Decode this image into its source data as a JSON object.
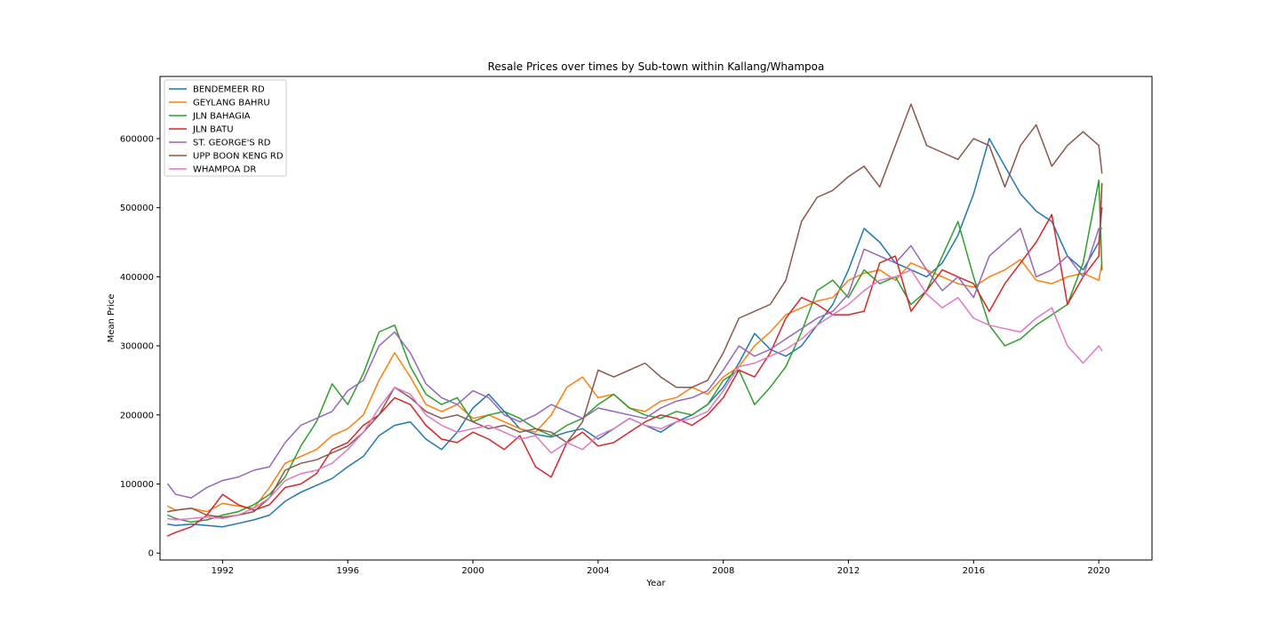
{
  "chart_data": {
    "type": "line",
    "title": "Resale Prices over times by Sub-town within Kallang/Whampoa",
    "xlabel": "Year",
    "ylabel": "Mean Price",
    "xlim": [
      1990.0,
      2021.7
    ],
    "ylim": [
      -10000,
      690000
    ],
    "xticks": [
      1992,
      1996,
      2000,
      2004,
      2008,
      2012,
      2016,
      2020
    ],
    "yticks": [
      0,
      100000,
      200000,
      300000,
      400000,
      500000,
      600000
    ],
    "grid": false,
    "legend_position": "top-left",
    "x": [
      1990.25,
      1990.5,
      1991.0,
      1991.5,
      1992.0,
      1992.5,
      1993.0,
      1993.5,
      1994.0,
      1994.5,
      1995.0,
      1995.5,
      1996.0,
      1996.5,
      1997.0,
      1997.5,
      1998.0,
      1998.5,
      1999.0,
      1999.5,
      2000.0,
      2000.5,
      2001.0,
      2001.5,
      2002.0,
      2002.5,
      2003.0,
      2003.5,
      2004.0,
      2004.5,
      2005.0,
      2005.5,
      2006.0,
      2006.5,
      2007.0,
      2007.5,
      2008.0,
      2008.5,
      2009.0,
      2009.5,
      2010.0,
      2010.5,
      2011.0,
      2011.5,
      2012.0,
      2012.5,
      2013.0,
      2013.5,
      2014.0,
      2014.5,
      2015.0,
      2015.5,
      2016.0,
      2016.5,
      2017.0,
      2017.5,
      2018.0,
      2018.5,
      2019.0,
      2019.5,
      2020.0,
      2020.1
    ],
    "series": [
      {
        "name": "BENDEMEER RD",
        "color": "#1f77b4",
        "values": [
          42000,
          40000,
          42000,
          40000,
          38000,
          43000,
          48000,
          55000,
          75000,
          88000,
          98000,
          108000,
          125000,
          140000,
          170000,
          185000,
          190000,
          165000,
          150000,
          175000,
          210000,
          230000,
          205000,
          180000,
          172000,
          168000,
          175000,
          180000,
          165000,
          180000,
          195000,
          185000,
          175000,
          190000,
          200000,
          215000,
          240000,
          275000,
          318000,
          295000,
          285000,
          300000,
          330000,
          360000,
          410000,
          470000,
          450000,
          420000,
          410000,
          400000,
          420000,
          460000,
          520000,
          600000,
          560000,
          520000,
          495000,
          480000,
          430000,
          410000,
          450000,
          500000
        ]
      },
      {
        "name": "GEYLANG BAHRU",
        "color": "#ff7f0e",
        "values": [
          68000,
          62000,
          65000,
          60000,
          72000,
          68000,
          65000,
          95000,
          130000,
          140000,
          150000,
          170000,
          180000,
          200000,
          250000,
          290000,
          255000,
          215000,
          205000,
          215000,
          195000,
          200000,
          190000,
          180000,
          175000,
          200000,
          240000,
          255000,
          225000,
          230000,
          210000,
          205000,
          220000,
          225000,
          240000,
          230000,
          255000,
          270000,
          300000,
          320000,
          345000,
          355000,
          365000,
          370000,
          395000,
          405000,
          410000,
          395000,
          420000,
          410000,
          400000,
          390000,
          385000,
          400000,
          410000,
          425000,
          395000,
          390000,
          400000,
          405000,
          395000,
          420000
        ]
      },
      {
        "name": "JLN BAHAGIA",
        "color": "#2ca02c",
        "values": [
          55000,
          50000,
          45000,
          48000,
          55000,
          60000,
          70000,
          85000,
          110000,
          155000,
          190000,
          245000,
          215000,
          260000,
          320000,
          330000,
          270000,
          230000,
          215000,
          225000,
          190000,
          200000,
          205000,
          195000,
          180000,
          170000,
          185000,
          195000,
          215000,
          230000,
          210000,
          200000,
          195000,
          205000,
          200000,
          215000,
          250000,
          265000,
          215000,
          240000,
          270000,
          320000,
          380000,
          395000,
          370000,
          410000,
          390000,
          400000,
          360000,
          380000,
          430000,
          480000,
          400000,
          330000,
          300000,
          310000,
          330000,
          345000,
          360000,
          420000,
          540000,
          410000
        ]
      },
      {
        "name": "JLN BATU",
        "color": "#d62728",
        "values": [
          25000,
          30000,
          38000,
          55000,
          85000,
          70000,
          62000,
          70000,
          95000,
          100000,
          115000,
          150000,
          160000,
          185000,
          200000,
          225000,
          215000,
          185000,
          165000,
          160000,
          175000,
          165000,
          150000,
          170000,
          125000,
          110000,
          160000,
          175000,
          155000,
          160000,
          175000,
          190000,
          200000,
          195000,
          185000,
          200000,
          225000,
          265000,
          255000,
          290000,
          340000,
          370000,
          360000,
          345000,
          345000,
          350000,
          420000,
          430000,
          350000,
          380000,
          410000,
          400000,
          390000,
          350000,
          390000,
          420000,
          450000,
          490000,
          360000,
          400000,
          430000,
          535000
        ]
      },
      {
        "name": "ST. GEORGE'S RD",
        "color": "#9467bd",
        "values": [
          100000,
          85000,
          80000,
          95000,
          105000,
          110000,
          120000,
          125000,
          160000,
          185000,
          195000,
          205000,
          235000,
          250000,
          300000,
          320000,
          290000,
          245000,
          225000,
          215000,
          235000,
          225000,
          200000,
          190000,
          200000,
          215000,
          205000,
          195000,
          210000,
          205000,
          200000,
          195000,
          210000,
          220000,
          225000,
          235000,
          265000,
          300000,
          285000,
          295000,
          310000,
          325000,
          340000,
          350000,
          375000,
          440000,
          430000,
          420000,
          445000,
          410000,
          380000,
          400000,
          370000,
          430000,
          450000,
          470000,
          400000,
          410000,
          430000,
          400000,
          470000,
          470000
        ]
      },
      {
        "name": "UPP BOON KENG RD",
        "color": "#8c564b",
        "values": [
          60000,
          62000,
          65000,
          55000,
          52000,
          55000,
          60000,
          80000,
          120000,
          130000,
          135000,
          145000,
          155000,
          175000,
          200000,
          240000,
          225000,
          205000,
          195000,
          200000,
          190000,
          180000,
          185000,
          175000,
          180000,
          175000,
          160000,
          190000,
          265000,
          255000,
          265000,
          275000,
          255000,
          240000,
          240000,
          250000,
          290000,
          340000,
          350000,
          360000,
          395000,
          480000,
          515000,
          525000,
          545000,
          560000,
          530000,
          590000,
          650000,
          590000,
          580000,
          570000,
          600000,
          590000,
          530000,
          590000,
          620000,
          560000,
          590000,
          610000,
          590000,
          550000
        ]
      },
      {
        "name": "WHAMPOA DR",
        "color": "#e377c2",
        "values": [
          50000,
          48000,
          50000,
          52000,
          50000,
          55000,
          65000,
          80000,
          105000,
          115000,
          120000,
          130000,
          150000,
          175000,
          210000,
          240000,
          230000,
          200000,
          185000,
          175000,
          180000,
          185000,
          175000,
          165000,
          170000,
          145000,
          160000,
          150000,
          170000,
          180000,
          195000,
          185000,
          180000,
          190000,
          195000,
          205000,
          235000,
          270000,
          275000,
          285000,
          295000,
          310000,
          330000,
          345000,
          360000,
          380000,
          395000,
          400000,
          410000,
          375000,
          355000,
          370000,
          340000,
          330000,
          325000,
          320000,
          340000,
          355000,
          300000,
          275000,
          300000,
          293000
        ]
      }
    ]
  }
}
